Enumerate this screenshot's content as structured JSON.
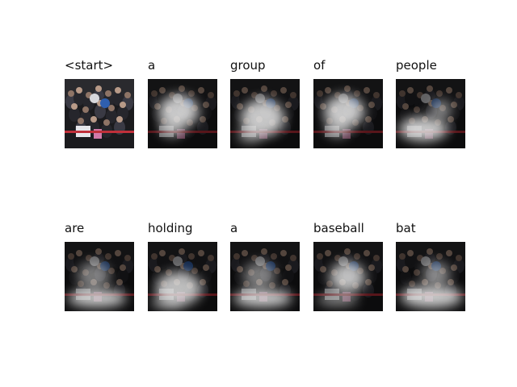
{
  "accent_colors": {
    "blue_balloon": "#2f5fae",
    "red_ribbon": "#c0303a",
    "highlight": "#e8e8e8"
  },
  "grid": [
    {
      "word": "<start>",
      "type": "original"
    },
    {
      "word": "a",
      "type": "attention",
      "focus": "upper"
    },
    {
      "word": "group",
      "type": "attention",
      "focus": "middle"
    },
    {
      "word": "of",
      "type": "attention",
      "focus": "upper"
    },
    {
      "word": "people",
      "type": "attention",
      "focus": "lower"
    },
    {
      "word": "are",
      "type": "attention",
      "focus": "bottom"
    },
    {
      "word": "holding",
      "type": "attention",
      "focus": "center-bottom"
    },
    {
      "word": "a",
      "type": "attention",
      "focus": "bottom"
    },
    {
      "word": "baseball",
      "type": "attention",
      "focus": "center"
    },
    {
      "word": "bat",
      "type": "attention",
      "focus": "bottom-wide"
    }
  ]
}
